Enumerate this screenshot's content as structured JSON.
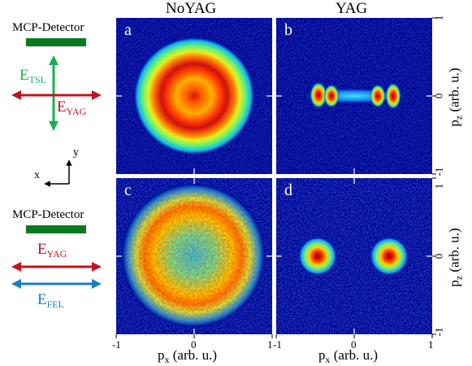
{
  "columns": {
    "left": "NoYAG",
    "right": "YAG"
  },
  "diagram_top": {
    "detector": "MCP-Detector",
    "field_vertical": {
      "main": "E",
      "sub": "TSL"
    },
    "field_horizontal": {
      "main": "E",
      "sub": "YAG"
    }
  },
  "coordinate_axes": {
    "x": "x",
    "y": "y"
  },
  "diagram_bottom": {
    "detector": "MCP-Detector",
    "field_yag": {
      "main": "E",
      "sub": "YAG"
    },
    "field_fel": {
      "main": "E",
      "sub": "FEL"
    }
  },
  "panels": [
    {
      "letter": "a",
      "pattern": "ring"
    },
    {
      "letter": "b",
      "pattern": "dumbbell"
    },
    {
      "letter": "c",
      "pattern": "noisy-disk"
    },
    {
      "letter": "d",
      "pattern": "two-spots"
    }
  ],
  "x_axis": {
    "label_main": "p",
    "label_sub": "x",
    "label_rest": " (arb. u.)",
    "ticks_left": [
      "-1",
      "0",
      "1"
    ],
    "ticks_right": [
      "-1",
      "0",
      "1"
    ]
  },
  "y_axis": {
    "label_main": "p",
    "label_sub": "z",
    "label_rest": " (arb. u.)",
    "ticks_top": [
      "1",
      "0",
      "-1"
    ],
    "ticks_bottom": [
      "1",
      "0",
      "-1"
    ]
  },
  "colors": {
    "detector": "#0a7a1f",
    "tsl": "#18b050",
    "yag": "#c0141e",
    "fel": "#1a7fc4",
    "panel_background": "#00008f"
  }
}
